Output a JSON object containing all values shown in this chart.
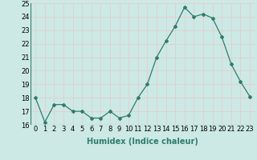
{
  "x": [
    0,
    1,
    2,
    3,
    4,
    5,
    6,
    7,
    8,
    9,
    10,
    11,
    12,
    13,
    14,
    15,
    16,
    17,
    18,
    19,
    20,
    21,
    22,
    23
  ],
  "y": [
    18,
    16.2,
    17.5,
    17.5,
    17.0,
    17.0,
    16.5,
    16.5,
    17.0,
    16.5,
    16.7,
    18.0,
    19.0,
    21.0,
    22.2,
    23.3,
    24.7,
    24.0,
    24.2,
    23.9,
    22.5,
    20.5,
    19.2,
    18.1
  ],
  "line_color": "#2e7d6e",
  "marker": "D",
  "marker_size": 2,
  "bg_color": "#cce9e5",
  "grid_color": "#b0d4d0",
  "xlabel": "Humidex (Indice chaleur)",
  "ylim": [
    16,
    25
  ],
  "xlim": [
    -0.5,
    23.5
  ],
  "yticks": [
    16,
    17,
    18,
    19,
    20,
    21,
    22,
    23,
    24,
    25
  ],
  "xticks": [
    0,
    1,
    2,
    3,
    4,
    5,
    6,
    7,
    8,
    9,
    10,
    11,
    12,
    13,
    14,
    15,
    16,
    17,
    18,
    19,
    20,
    21,
    22,
    23
  ],
  "tick_label_size": 6,
  "xlabel_size": 7
}
